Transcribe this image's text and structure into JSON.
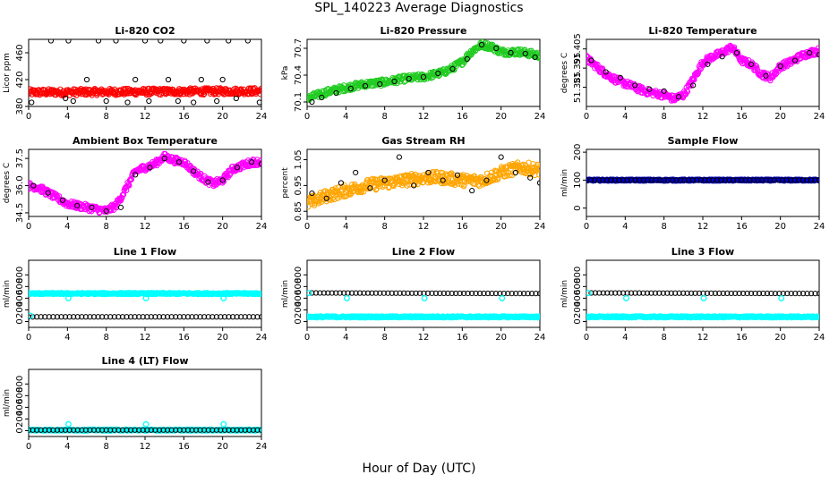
{
  "figure": {
    "title": "SPL_140223  Average Diagnostics",
    "xlabel": "Hour of Day (UTC)"
  },
  "chart_data": [
    {
      "type": "scatter",
      "title": "Li-820 CO2",
      "ylabel": "Licor ppm",
      "xlim": [
        0,
        24
      ],
      "ylim": [
        380,
        480
      ],
      "xticks": [
        "0",
        "4",
        "8",
        "12",
        "16",
        "20",
        "24"
      ],
      "yticks": [
        "380",
        "420",
        "460"
      ],
      "colors": {
        "dense": "#ff0000",
        "sparse": "#000000"
      },
      "series": [
        {
          "style": "dense",
          "x": [
            0,
            24
          ],
          "y": [
            401,
            403
          ]
        },
        {
          "style": "sparse",
          "x": [
            0.3,
            2.3,
            3.8,
            4.1,
            4.6,
            6.0,
            7.2,
            8.0,
            9.0,
            10.2,
            11.0,
            12.0,
            12.4,
            13.6,
            14.4,
            15.4,
            16.0,
            17.0,
            17.8,
            18.4,
            19.4,
            20.0,
            20.6,
            21.4,
            22.6,
            23.8
          ],
          "y": [
            386,
            478,
            392,
            478,
            388,
            420,
            478,
            388,
            478,
            386,
            420,
            478,
            388,
            478,
            420,
            388,
            478,
            386,
            420,
            478,
            388,
            420,
            478,
            392,
            478,
            386
          ]
        }
      ]
    },
    {
      "type": "scatter",
      "title": "Li-820 Pressure",
      "ylabel": "kPa",
      "xlim": [
        0,
        24
      ],
      "ylim": [
        70.05,
        70.8
      ],
      "xticks": [
        "0",
        "4",
        "8",
        "12",
        "16",
        "20",
        "24"
      ],
      "yticks": [
        "70.1",
        "70.4",
        "70.7"
      ],
      "colors": {
        "dense": "#22cc22",
        "sparse": "#000000"
      },
      "series": [
        {
          "style": "dense",
          "x": [
            0,
            2,
            4,
            6,
            8,
            10,
            12,
            14,
            15,
            16,
            17,
            18,
            19,
            20,
            22,
            24
          ],
          "y": [
            70.14,
            70.21,
            70.26,
            70.3,
            70.32,
            70.36,
            70.38,
            70.43,
            70.48,
            70.55,
            70.67,
            70.74,
            70.72,
            70.66,
            70.66,
            70.62
          ]
        },
        {
          "style": "sparse",
          "x": [
            0.5,
            1.5,
            3,
            4.5,
            6,
            7.5,
            9,
            10.5,
            12,
            13.5,
            15,
            16.5,
            18,
            19.5,
            21,
            22.5,
            23.5
          ],
          "y": [
            70.1,
            70.15,
            70.2,
            70.25,
            70.28,
            70.3,
            70.33,
            70.36,
            70.38,
            70.42,
            70.47,
            70.58,
            70.74,
            70.7,
            70.65,
            70.64,
            70.6
          ]
        }
      ]
    },
    {
      "type": "scatter",
      "title": "Li-820 Temperature",
      "ylabel": "degrees C",
      "xlim": [
        0,
        24
      ],
      "ylim": [
        51.375,
        51.41
      ],
      "xticks": [
        "0",
        "4",
        "8",
        "12",
        "16",
        "20",
        "24"
      ],
      "yticks": [
        "51.385",
        "51.395",
        "51.405"
      ],
      "colors": {
        "dense": "#ff00ff",
        "sparse": "#000000"
      },
      "series": [
        {
          "style": "dense",
          "x": [
            0,
            1,
            2,
            3,
            4,
            5,
            6,
            7,
            8,
            9,
            10,
            11,
            12,
            13,
            14,
            15,
            16,
            17,
            18,
            19,
            20,
            21,
            22,
            23,
            24
          ],
          "y": [
            51.4,
            51.396,
            51.392,
            51.389,
            51.387,
            51.385,
            51.383,
            51.382,
            51.381,
            51.379,
            51.381,
            51.389,
            51.398,
            51.401,
            51.403,
            51.406,
            51.399,
            51.397,
            51.392,
            51.39,
            51.396,
            51.398,
            51.401,
            51.403,
            51.404
          ]
        },
        {
          "style": "sparse",
          "x": [
            0.5,
            2,
            3.5,
            5,
            6.5,
            8,
            9.5,
            11,
            12.5,
            14,
            15.5,
            17,
            18.5,
            20,
            21.5,
            23,
            24
          ],
          "y": [
            51.399,
            51.393,
            51.39,
            51.386,
            51.384,
            51.383,
            51.38,
            51.386,
            51.397,
            51.401,
            51.403,
            51.397,
            51.391,
            51.396,
            51.399,
            51.403,
            51.402
          ]
        }
      ]
    },
    {
      "type": "scatter",
      "title": "Ambient Box Temperature",
      "ylabel": "degrees C",
      "xlim": [
        0,
        24
      ],
      "ylim": [
        34.3,
        38.0
      ],
      "xticks": [
        "0",
        "4",
        "8",
        "12",
        "16",
        "20",
        "24"
      ],
      "yticks": [
        "34.5",
        "36.0",
        "37.5"
      ],
      "colors": {
        "dense": "#ff00ff",
        "sparse": "#000000"
      },
      "series": [
        {
          "style": "dense",
          "x": [
            0,
            1,
            2,
            3,
            4,
            5,
            6,
            7,
            8,
            9,
            10,
            11,
            12,
            13,
            14,
            15,
            16,
            17,
            18,
            19,
            20,
            21,
            22,
            23,
            24
          ],
          "y": [
            36.0,
            35.9,
            35.6,
            35.3,
            35.0,
            34.9,
            34.8,
            34.7,
            34.6,
            34.9,
            35.8,
            36.8,
            37.0,
            37.2,
            37.6,
            37.4,
            37.3,
            36.8,
            36.4,
            36.1,
            36.3,
            36.9,
            37.1,
            37.3,
            37.3
          ]
        },
        {
          "style": "sparse",
          "x": [
            0.5,
            2,
            3.5,
            5,
            6.5,
            8,
            9.5,
            11,
            12.5,
            14,
            15.5,
            17,
            18.5,
            20,
            21.5,
            23,
            24
          ],
          "y": [
            36.0,
            35.6,
            35.2,
            34.9,
            34.8,
            34.6,
            34.8,
            36.6,
            37.0,
            37.5,
            37.3,
            36.8,
            36.2,
            36.3,
            37.0,
            37.3,
            37.2
          ]
        }
      ]
    },
    {
      "type": "scatter",
      "title": "Gas Stream RH",
      "ylabel": "percent",
      "xlim": [
        0,
        24
      ],
      "ylim": [
        0.83,
        1.09
      ],
      "xticks": [
        "0",
        "4",
        "8",
        "12",
        "16",
        "20",
        "24"
      ],
      "yticks": [
        "0.85",
        "0.95",
        "1.05"
      ],
      "colors": {
        "dense": "#ffa500",
        "sparse": "#000000"
      },
      "series": [
        {
          "style": "dense",
          "x": [
            0,
            2,
            4,
            6,
            8,
            10,
            12,
            14,
            16,
            18,
            20,
            22,
            24
          ],
          "y": [
            0.88,
            0.91,
            0.93,
            0.95,
            0.96,
            0.97,
            0.98,
            0.98,
            0.97,
            0.97,
            1.0,
            1.02,
            1.01
          ]
        },
        {
          "style": "sparse",
          "x": [
            0.5,
            2,
            3.5,
            5,
            6.5,
            8,
            9.5,
            11,
            12.5,
            14,
            15.5,
            17,
            18.5,
            20,
            21.5,
            23,
            24
          ],
          "y": [
            0.92,
            0.9,
            0.96,
            1.0,
            0.94,
            0.97,
            1.06,
            0.95,
            1.0,
            0.97,
            0.99,
            0.93,
            0.97,
            1.06,
            1.0,
            0.98,
            0.96
          ]
        }
      ]
    },
    {
      "type": "scatter",
      "title": "Sample Flow",
      "ylabel": "ml/min",
      "xlim": [
        0,
        24
      ],
      "ylim": [
        -30,
        210
      ],
      "xticks": [
        "0",
        "4",
        "8",
        "12",
        "16",
        "20",
        "24"
      ],
      "yticks": [
        "0",
        "100",
        "200"
      ],
      "colors": {
        "dense": "#0000cc",
        "sparse": "#000000"
      },
      "series": [
        {
          "style": "dense",
          "x": [
            0,
            24
          ],
          "y": [
            100,
            100
          ]
        },
        {
          "style": "sparse",
          "x": [
            0,
            24
          ],
          "y": [
            100,
            100
          ]
        }
      ]
    },
    {
      "type": "scatter",
      "title": "Line 1 Flow",
      "ylabel": "ml/min",
      "xlim": [
        0,
        24
      ],
      "ylim": [
        -100,
        1050
      ],
      "xticks": [
        "0",
        "4",
        "8",
        "12",
        "16",
        "20",
        "24"
      ],
      "yticks": [
        "0",
        "200",
        "400",
        "600",
        "800"
      ],
      "colors": {
        "dense": "#00ffff",
        "sparse": "#000000"
      },
      "series": [
        {
          "style": "dense",
          "x": [
            0,
            24
          ],
          "y": [
            480,
            480
          ]
        },
        {
          "style": "sparse",
          "x": [
            0,
            24
          ],
          "y": [
            80,
            80
          ]
        },
        {
          "style": "outlier",
          "x": [
            0.2,
            4.1,
            12.1,
            20.1
          ],
          "y": [
            100,
            400,
            400,
            400
          ]
        }
      ]
    },
    {
      "type": "scatter",
      "title": "Line 2 Flow",
      "ylabel": "ml/min",
      "xlim": [
        0,
        24
      ],
      "ylim": [
        -100,
        1050
      ],
      "xticks": [
        "0",
        "4",
        "8",
        "12",
        "16",
        "20",
        "24"
      ],
      "yticks": [
        "0",
        "200",
        "400",
        "600",
        "800"
      ],
      "colors": {
        "dense": "#00ffff",
        "sparse": "#000000"
      },
      "series": [
        {
          "style": "dense",
          "x": [
            0,
            24
          ],
          "y": [
            80,
            80
          ]
        },
        {
          "style": "sparse",
          "x": [
            0.5,
            24
          ],
          "y": [
            490,
            480
          ]
        },
        {
          "style": "outlier",
          "x": [
            0.2,
            4.1,
            12.1,
            20.1
          ],
          "y": [
            490,
            400,
            400,
            400
          ]
        }
      ]
    },
    {
      "type": "scatter",
      "title": "Line 3 Flow",
      "ylabel": "ml/min",
      "xlim": [
        0,
        24
      ],
      "ylim": [
        -100,
        1050
      ],
      "xticks": [
        "0",
        "4",
        "8",
        "12",
        "16",
        "20",
        "24"
      ],
      "yticks": [
        "0",
        "200",
        "400",
        "600",
        "800"
      ],
      "colors": {
        "dense": "#00ffff",
        "sparse": "#000000"
      },
      "series": [
        {
          "style": "dense",
          "x": [
            0,
            24
          ],
          "y": [
            80,
            80
          ]
        },
        {
          "style": "sparse",
          "x": [
            0.5,
            24
          ],
          "y": [
            490,
            480
          ]
        },
        {
          "style": "outlier",
          "x": [
            0.2,
            4.1,
            12.1,
            20.1
          ],
          "y": [
            490,
            400,
            400,
            400
          ]
        }
      ]
    },
    {
      "type": "scatter",
      "title": "Line 4 (LT) Flow",
      "ylabel": "ml/min",
      "xlim": [
        0,
        24
      ],
      "ylim": [
        -100,
        1050
      ],
      "xticks": [
        "0",
        "4",
        "8",
        "12",
        "16",
        "20",
        "24"
      ],
      "yticks": [
        "0",
        "200",
        "400",
        "600",
        "800"
      ],
      "colors": {
        "dense": "#00ffff",
        "sparse": "#000000"
      },
      "series": [
        {
          "style": "dense",
          "x": [
            0,
            24
          ],
          "y": [
            10,
            10
          ]
        },
        {
          "style": "sparse",
          "x": [
            0,
            24
          ],
          "y": [
            10,
            10
          ]
        },
        {
          "style": "outlier",
          "x": [
            4.1,
            12.1,
            20.1
          ],
          "y": [
            110,
            110,
            110
          ]
        }
      ]
    }
  ]
}
